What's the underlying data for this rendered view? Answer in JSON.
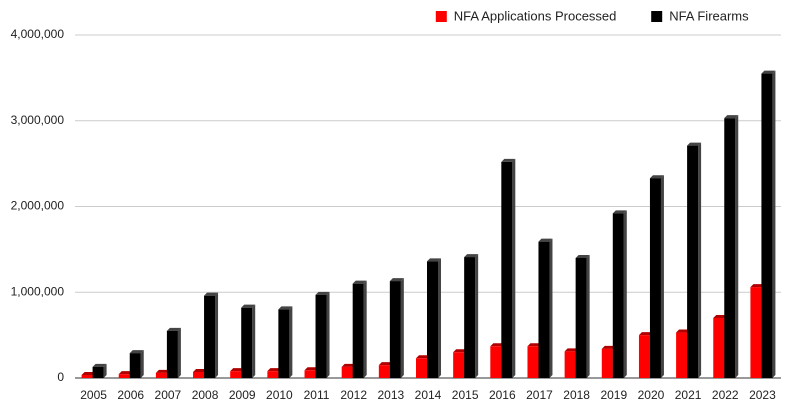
{
  "chart_data": {
    "type": "bar",
    "categories": [
      "2005",
      "2006",
      "2007",
      "2008",
      "2009",
      "2010",
      "2011",
      "2012",
      "2013",
      "2014",
      "2015",
      "2016",
      "2017",
      "2018",
      "2019",
      "2020",
      "2021",
      "2022",
      "2023"
    ],
    "series": [
      {
        "name": "NFA Applications Processed",
        "color": "#ff0000",
        "values": [
          35000,
          45000,
          60000,
          70000,
          80000,
          80000,
          90000,
          130000,
          150000,
          230000,
          300000,
          370000,
          370000,
          310000,
          340000,
          500000,
          530000,
          700000,
          1060000
        ]
      },
      {
        "name": "NFA Firearms",
        "color": "#000000",
        "values": [
          130000,
          290000,
          550000,
          960000,
          820000,
          800000,
          970000,
          1100000,
          1130000,
          1360000,
          1410000,
          2520000,
          1590000,
          1400000,
          1920000,
          2330000,
          2710000,
          3030000,
          3550000
        ]
      }
    ],
    "ylim": [
      0,
      4000000
    ],
    "yticks": [
      0,
      {
        "value": 1000000,
        "label": "1,000,000"
      },
      {
        "value": 2000000,
        "label": "2,000,000"
      },
      {
        "value": 3000000,
        "label": "3,000,000"
      },
      {
        "value": 4000000,
        "label": "4,000,000"
      }
    ],
    "grid": true,
    "legend": "top-right"
  }
}
